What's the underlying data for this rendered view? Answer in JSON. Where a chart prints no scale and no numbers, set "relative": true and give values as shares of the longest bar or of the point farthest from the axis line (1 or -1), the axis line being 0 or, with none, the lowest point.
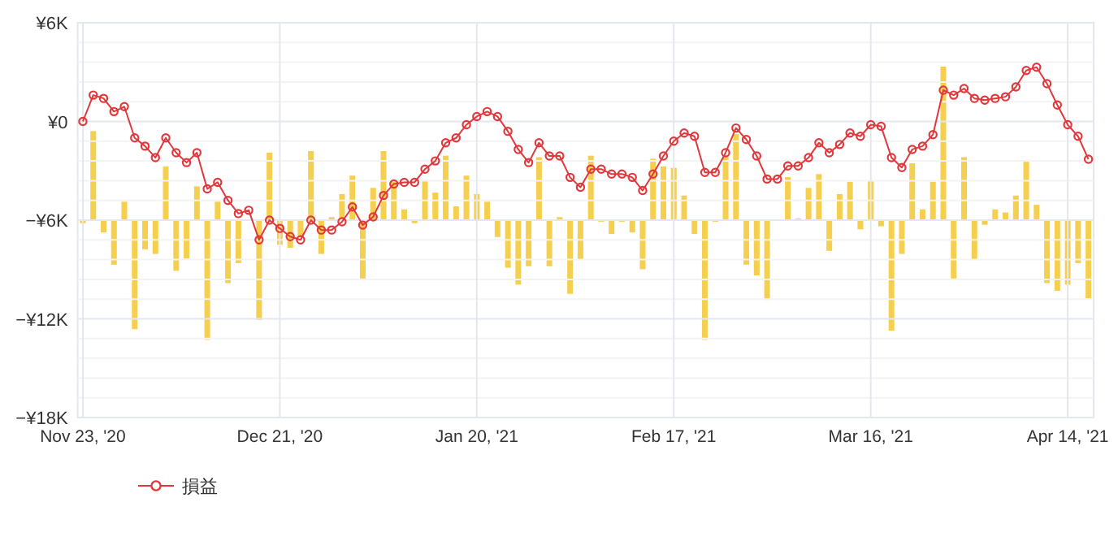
{
  "chart_data": [
    {
      "type": "line",
      "categories": [
        "Nov 23, '20",
        null,
        null,
        null,
        null,
        null,
        null,
        null,
        null,
        null,
        null,
        null,
        null,
        null,
        null,
        null,
        null,
        null,
        null,
        "Dec 21, '20",
        null,
        null,
        null,
        null,
        null,
        null,
        null,
        null,
        null,
        null,
        null,
        null,
        null,
        null,
        null,
        null,
        null,
        null,
        "Jan 20, '21",
        null,
        null,
        null,
        null,
        null,
        null,
        null,
        null,
        null,
        null,
        null,
        null,
        null,
        null,
        null,
        null,
        null,
        null,
        "Feb 17, '21",
        null,
        null,
        null,
        null,
        null,
        null,
        null,
        null,
        null,
        null,
        null,
        null,
        null,
        null,
        null,
        null,
        null,
        null,
        "Mar 16, '21",
        null,
        null,
        null,
        null,
        null,
        null,
        null,
        null,
        null,
        null,
        null,
        null,
        null,
        null,
        null,
        null,
        null,
        null,
        "Apr 14, '21",
        null,
        null
      ],
      "series": [
        {
          "name": "損益",
          "color": "#e0383c",
          "values": [
            0,
            1600,
            1400,
            600,
            900,
            -1000,
            -1500,
            -2200,
            -1000,
            -1900,
            -2500,
            -1900,
            -4100,
            -3700,
            -4800,
            -5600,
            -5400,
            -7200,
            -6000,
            -6500,
            -7000,
            -7200,
            -6000,
            -6600,
            -6600,
            -6100,
            -5200,
            -6300,
            -5800,
            -4500,
            -3800,
            -3700,
            -3700,
            -2900,
            -2400,
            -1300,
            -1000,
            -200,
            300,
            600,
            300,
            -600,
            -1700,
            -2500,
            -1300,
            -2100,
            -2100,
            -3400,
            -4000,
            -2900,
            -2900,
            -3200,
            -3200,
            -3400,
            -4200,
            -3200,
            -2100,
            -1200,
            -700,
            -900,
            -3100,
            -3100,
            -1900,
            -400,
            -1100,
            -2100,
            -3500,
            -3500,
            -2700,
            -2700,
            -2200,
            -1300,
            -1900,
            -1400,
            -700,
            -900,
            -200,
            -300,
            -2200,
            -2800,
            -1700,
            -1500,
            -800,
            1900,
            1600,
            2000,
            1400,
            1300,
            1400,
            1500,
            2100,
            3100,
            3300,
            2300,
            1000,
            -200,
            -900,
            -2300
          ]
        }
      ],
      "ylim": [
        -18000,
        6000
      ],
      "yticks": [
        {
          "value": -18000,
          "label": "−¥18K"
        },
        {
          "value": -12000,
          "label": "−¥12K"
        },
        {
          "value": -6000,
          "label": "−¥6K"
        },
        {
          "value": 0,
          "label": "¥0"
        },
        {
          "value": 6000,
          "label": "¥6K"
        }
      ],
      "grid": true,
      "legend": "bottom",
      "marker": "circle",
      "line_style": "solid"
    },
    {
      "type": "bar",
      "relative": true,
      "tick_labels": false,
      "categories": [
        null,
        null,
        null,
        null,
        null,
        null,
        null,
        null,
        null,
        null,
        null,
        null,
        null,
        null,
        null,
        null,
        null,
        null,
        null,
        null,
        null,
        null,
        null,
        null,
        null,
        null,
        null,
        null,
        null,
        null,
        null,
        null,
        null,
        null,
        null,
        null,
        null,
        null,
        null,
        null,
        null,
        null,
        null,
        null,
        null,
        null,
        null,
        null,
        null,
        null,
        null,
        null,
        null,
        null,
        null,
        null,
        null,
        null,
        null,
        null,
        null,
        null,
        null,
        null,
        null,
        null,
        null,
        null,
        null,
        null,
        null,
        null,
        null,
        null,
        null,
        null,
        null,
        null,
        null,
        null,
        null,
        null,
        null,
        null,
        null,
        null,
        null,
        null,
        null,
        null,
        null,
        null,
        null,
        null,
        null,
        null,
        null,
        null
      ],
      "color": "#f5cf4f",
      "values": [
        -0.02,
        0.58,
        -0.08,
        -0.29,
        0.12,
        -0.71,
        -0.19,
        -0.22,
        0.35,
        -0.33,
        -0.25,
        0.22,
        -0.78,
        0.12,
        -0.41,
        -0.28,
        0.0,
        -0.65,
        0.44,
        -0.16,
        -0.18,
        -0.11,
        0.45,
        -0.22,
        0.02,
        0.17,
        0.29,
        -0.38,
        0.21,
        0.45,
        0.25,
        0.07,
        -0.02,
        0.26,
        0.18,
        0.42,
        0.09,
        0.29,
        0.17,
        0.12,
        -0.11,
        -0.31,
        -0.42,
        -0.3,
        0.41,
        -0.3,
        0.02,
        -0.48,
        -0.26,
        0.42,
        -0.01,
        -0.09,
        -0.01,
        -0.08,
        -0.32,
        0.4,
        0.35,
        0.34,
        0.16,
        -0.09,
        -0.78,
        -0.01,
        0.42,
        0.56,
        -0.29,
        -0.36,
        -0.52,
        0.0,
        0.28,
        0.01,
        0.21,
        0.3,
        -0.2,
        0.17,
        0.25,
        -0.06,
        0.26,
        -0.04,
        -0.72,
        -0.22,
        0.37,
        0.07,
        0.25,
        1.0,
        -0.38,
        0.41,
        -0.26,
        -0.03,
        0.07,
        0.05,
        0.16,
        0.38,
        0.1,
        -0.41,
        -0.46,
        -0.42,
        -0.28,
        -0.51
      ]
    }
  ]
}
